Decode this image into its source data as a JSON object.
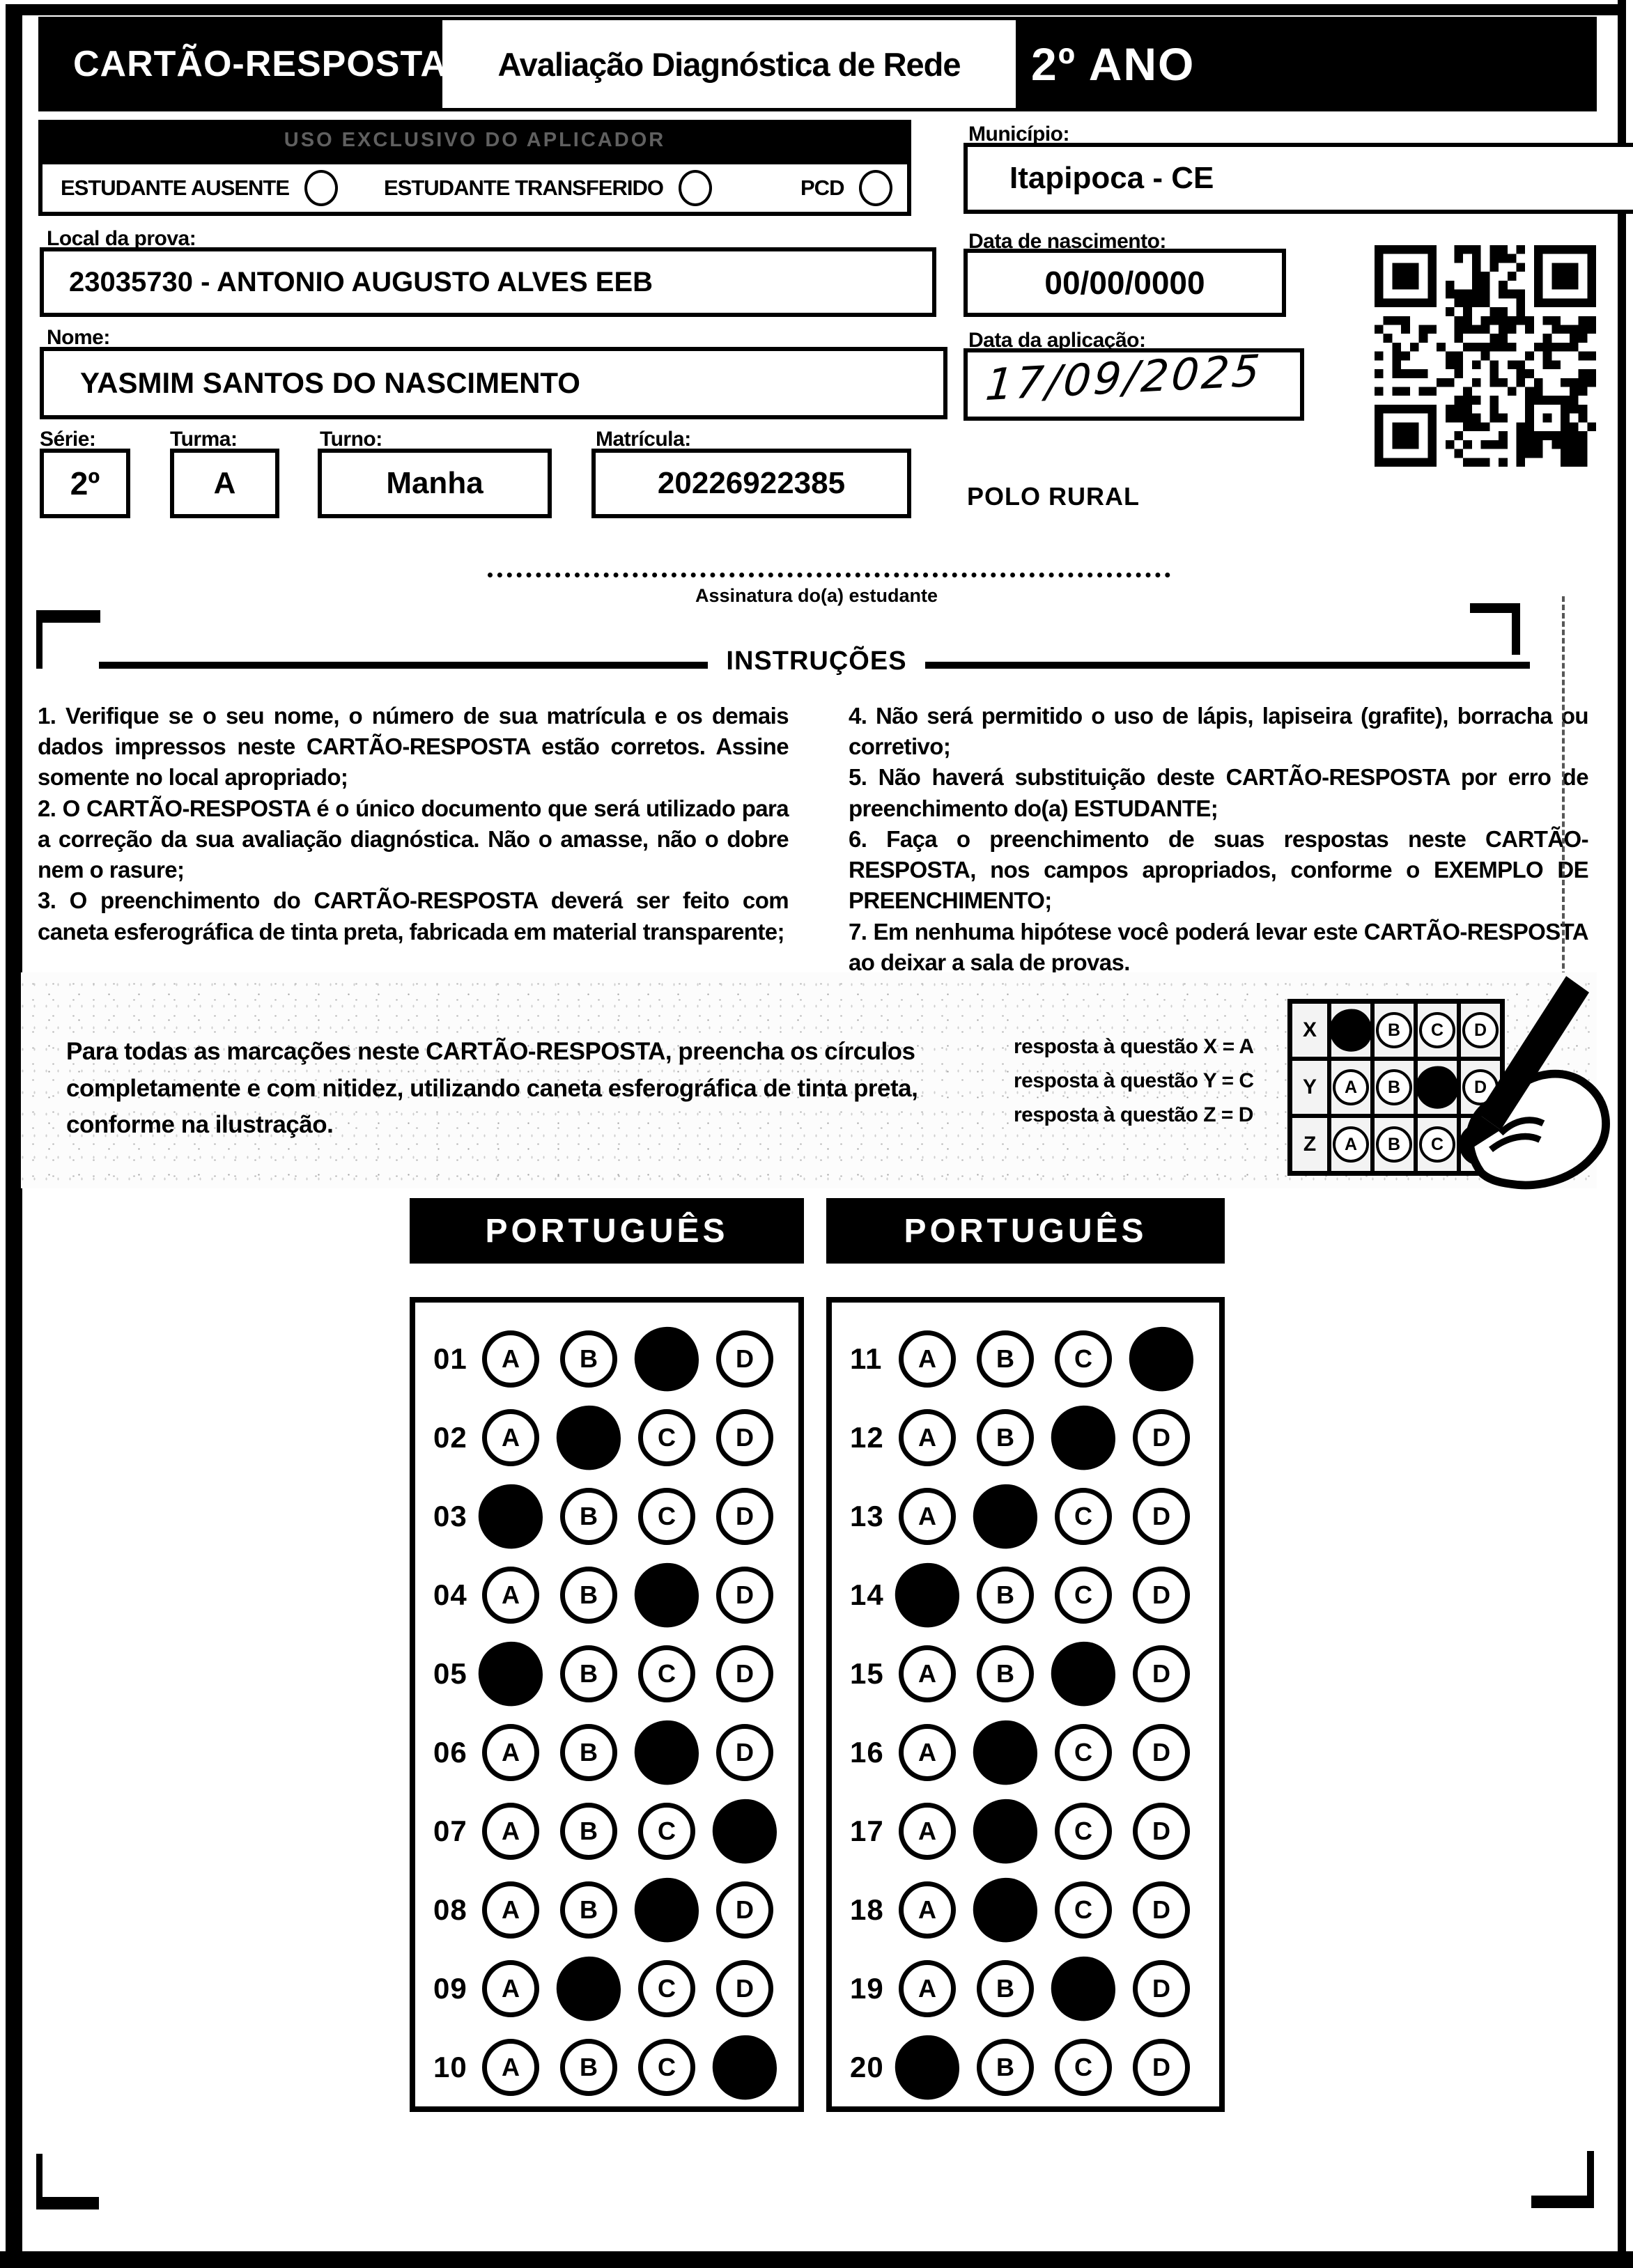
{
  "colors": {
    "ink": "#000000",
    "paper": "#ffffff"
  },
  "header": {
    "card_title": "CARTÃO-RESPOSTA",
    "assessment_title": "Avaliação Diagnóstica de Rede",
    "grade": "2º ANO"
  },
  "applicator": {
    "bar_title": "USO EXCLUSIVO DO APLICADOR",
    "options": [
      {
        "label": "ESTUDANTE AUSENTE"
      },
      {
        "label": "ESTUDANTE TRANSFERIDO"
      },
      {
        "label": "PCD"
      }
    ]
  },
  "fields": {
    "municipio": {
      "label": "Município:",
      "value": "Itapipoca - CE"
    },
    "local": {
      "label": "Local da prova:",
      "value": "23035730 - ANTONIO AUGUSTO ALVES EEB"
    },
    "nascimento": {
      "label": "Data de nascimento:",
      "value": "00/00/0000"
    },
    "aplicacao": {
      "label": "Data da aplicação:",
      "value": "17/09/2025"
    },
    "nome": {
      "label": "Nome:",
      "value": "YASMIM SANTOS DO NASCIMENTO"
    },
    "serie": {
      "label": "Série:",
      "value": "2º"
    },
    "turma": {
      "label": "Turma:",
      "value": "A"
    },
    "turno": {
      "label": "Turno:",
      "value": "Manha"
    },
    "matricula": {
      "label": "Matrícula:",
      "value": "20226922385"
    },
    "polo": "POLO RURAL"
  },
  "signature": {
    "caption": "Assinatura do(a) estudante"
  },
  "instructions": {
    "title": "INSTRUÇÕES",
    "left": [
      "1. Verifique se o seu nome, o número de sua matrícula e os demais dados impressos neste CARTÃO-RESPOSTA estão corretos. Assine somente no local apropriado;",
      "2. O CARTÃO-RESPOSTA é o único documento que será utilizado para a correção da sua avaliação diagnóstica. Não o amasse, não o dobre nem o rasure;",
      "3. O preenchimento do CARTÃO-RESPOSTA deverá ser feito com caneta esferográfica de tinta preta, fabricada em material transparente;"
    ],
    "right": [
      "4. Não será permitido o uso de lápis, lapiseira (grafite), borracha ou corretivo;",
      "5. Não haverá substituição deste CARTÃO-RESPOSTA por erro de preenchimento do(a) ESTUDANTE;",
      "6. Faça o preenchimento de suas respostas neste CARTÃO-RESPOSTA, nos campos apropriados, conforme o EXEMPLO DE PREENCHIMENTO;",
      "7. Em nenhuma hipótese você poderá levar este CARTÃO-RESPOSTA ao deixar a sala de provas."
    ]
  },
  "example": {
    "text": "Para todas as marcações neste CARTÃO-RESPOSTA, preencha os círculos completamente e com nitidez, utilizando caneta esferográfica de tinta preta, conforme na ilustração.",
    "legend": [
      "resposta à questão X = A",
      "resposta à questão Y = C",
      "resposta à questão Z = D"
    ],
    "grid_rows": [
      {
        "label": "X",
        "filled": "A"
      },
      {
        "label": "Y",
        "filled": "C"
      },
      {
        "label": "Z",
        "filled": "D"
      }
    ]
  },
  "options": [
    "A",
    "B",
    "C",
    "D"
  ],
  "answer_sections": [
    {
      "title": "PORTUGUÊS",
      "questions": [
        {
          "num": "01",
          "filled": "C"
        },
        {
          "num": "02",
          "filled": "B"
        },
        {
          "num": "03",
          "filled": "A"
        },
        {
          "num": "04",
          "filled": "C"
        },
        {
          "num": "05",
          "filled": "A"
        },
        {
          "num": "06",
          "filled": "C"
        },
        {
          "num": "07",
          "filled": "D"
        },
        {
          "num": "08",
          "filled": "C"
        },
        {
          "num": "09",
          "filled": "B"
        },
        {
          "num": "10",
          "filled": "D"
        }
      ]
    },
    {
      "title": "PORTUGUÊS",
      "questions": [
        {
          "num": "11",
          "filled": "D"
        },
        {
          "num": "12",
          "filled": "C"
        },
        {
          "num": "13",
          "filled": "B"
        },
        {
          "num": "14",
          "filled": "A"
        },
        {
          "num": "15",
          "filled": "C"
        },
        {
          "num": "16",
          "filled": "B"
        },
        {
          "num": "17",
          "filled": "B"
        },
        {
          "num": "18",
          "filled": "B"
        },
        {
          "num": "19",
          "filled": "C"
        },
        {
          "num": "20",
          "filled": "A"
        }
      ]
    }
  ]
}
